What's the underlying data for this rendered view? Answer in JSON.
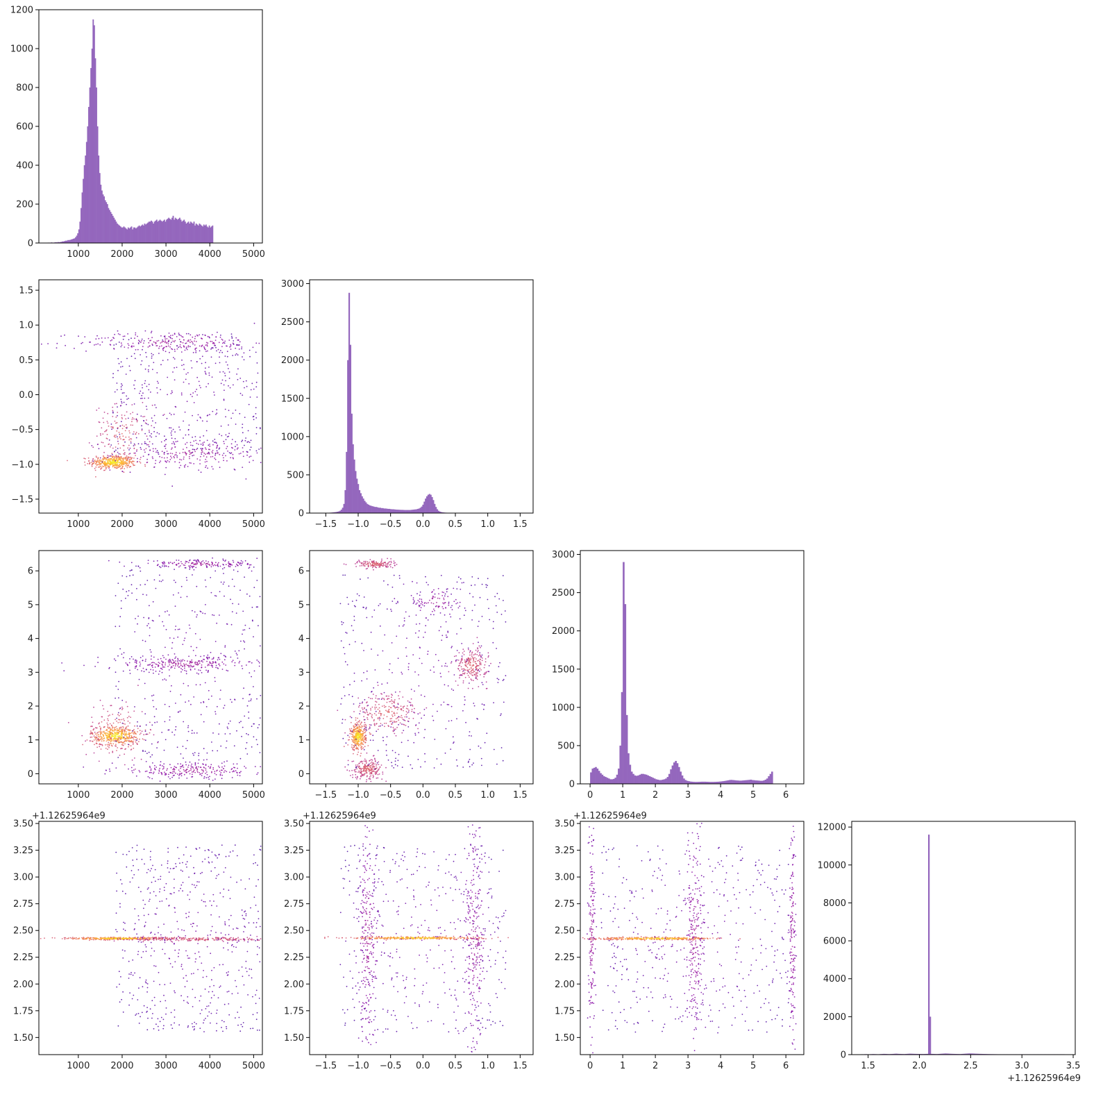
{
  "colors": {
    "hist_fill": "#9467bd",
    "scatter_colormap": "plasma (density-colored points, purple low to yellow high)"
  },
  "chart_data": [
    {
      "id": "hist_0",
      "type": "bar",
      "panel": "row1-col1",
      "xlim": [
        100,
        5200
      ],
      "ylim": [
        0,
        1200
      ],
      "xticks": [
        1000,
        2000,
        3000,
        4000,
        5000
      ],
      "yticks": [
        0,
        200,
        400,
        600,
        800,
        1000,
        1200
      ],
      "bin_edges_start": 300,
      "bin_width": 25,
      "values": [
        2,
        2,
        1,
        3,
        2,
        2,
        3,
        4,
        3,
        5,
        4,
        5,
        6,
        8,
        8,
        10,
        12,
        12,
        15,
        15,
        16,
        18,
        20,
        22,
        24,
        30,
        38,
        50,
        70,
        110,
        180,
        260,
        330,
        400,
        450,
        520,
        600,
        700,
        800,
        900,
        1000,
        1150,
        1120,
        950,
        800,
        600,
        450,
        360,
        300,
        270,
        250,
        240,
        220,
        210,
        200,
        180,
        170,
        160,
        150,
        140,
        130,
        120,
        110,
        100,
        95,
        90,
        85,
        80,
        80,
        85,
        80,
        75,
        70,
        80,
        75,
        80,
        85,
        70,
        80,
        80,
        75,
        80,
        85,
        90,
        85,
        90,
        95,
        90,
        100,
        95,
        100,
        105,
        110,
        110,
        115,
        110,
        100,
        110,
        115,
        120,
        110,
        115,
        120,
        115,
        110,
        115,
        120,
        110,
        120,
        125,
        130,
        125,
        120,
        130,
        140,
        120,
        130,
        125,
        120,
        125,
        130,
        120,
        110,
        115,
        120,
        110,
        100,
        105,
        110,
        100,
        110,
        105,
        100,
        110,
        90,
        100,
        95,
        90,
        100,
        95,
        90,
        85,
        95,
        90,
        95,
        85,
        80,
        90,
        80,
        85,
        90
      ]
    },
    {
      "id": "scatter_1_0",
      "type": "scatter",
      "panel": "row2-col1",
      "xlim": [
        100,
        5200
      ],
      "ylim": [
        -1.7,
        1.65
      ],
      "xticks": [
        1000,
        2000,
        3000,
        4000,
        5000
      ],
      "yticks": [
        -1.5,
        -1.0,
        -0.5,
        0.0,
        0.5,
        1.0,
        1.5
      ],
      "clusters": [
        {
          "cx": 1800,
          "cy": -0.97,
          "sx": 260,
          "sy": 0.05,
          "weight": 5,
          "density": "high"
        },
        {
          "cx": 2000,
          "cy": -0.55,
          "sx": 320,
          "sy": 0.2,
          "weight": 2,
          "density": "mid"
        },
        {
          "cx": 3600,
          "cy": -0.85,
          "sx": 900,
          "sy": 0.12,
          "weight": 3,
          "density": "low"
        },
        {
          "cx": 3200,
          "cy": 0.75,
          "sx": 1100,
          "sy": 0.08,
          "weight": 3,
          "density": "low"
        },
        {
          "cx": 3500,
          "cy": 0.0,
          "sx": 1100,
          "sy": 0.55,
          "weight": 3,
          "density": "sparse"
        }
      ]
    },
    {
      "id": "hist_1",
      "type": "bar",
      "panel": "row2-col2",
      "xlim": [
        -1.75,
        1.7
      ],
      "ylim": [
        0,
        3050
      ],
      "xticks": [
        -1.5,
        -1.0,
        -0.5,
        0.0,
        0.5,
        1.0,
        1.5
      ],
      "yticks": [
        0,
        500,
        1000,
        1500,
        2000,
        2500,
        3000
      ],
      "bin_edges_start": -1.55,
      "bin_width": 0.02,
      "values": [
        2,
        2,
        3,
        3,
        4,
        5,
        6,
        8,
        10,
        12,
        14,
        18,
        22,
        30,
        45,
        70,
        120,
        300,
        800,
        2000,
        2880,
        2200,
        1300,
        900,
        700,
        550,
        450,
        380,
        300,
        260,
        220,
        190,
        160,
        140,
        120,
        110,
        100,
        95,
        90,
        85,
        80,
        80,
        75,
        70,
        70,
        65,
        65,
        60,
        60,
        58,
        55,
        55,
        52,
        50,
        50,
        48,
        46,
        45,
        44,
        43,
        42,
        42,
        41,
        40,
        40,
        40,
        40,
        40,
        42,
        44,
        46,
        48,
        50,
        55,
        60,
        70,
        85,
        110,
        150,
        190,
        220,
        240,
        250,
        240,
        210,
        170,
        120,
        80,
        50,
        30,
        20,
        14,
        10,
        8,
        6,
        5,
        4,
        3,
        3,
        2,
        2,
        2,
        1,
        1,
        1,
        1,
        1,
        1,
        1,
        1,
        1,
        1,
        1,
        1,
        1,
        1,
        1,
        1,
        1,
        1,
        1,
        1,
        1,
        1,
        1,
        1,
        1,
        1,
        1,
        1,
        1,
        1,
        1,
        1,
        1,
        1,
        1,
        1,
        1,
        1,
        1,
        1,
        1,
        1,
        1,
        1,
        1,
        1,
        1,
        1,
        1,
        1,
        1,
        1,
        1
      ]
    },
    {
      "id": "scatter_2_0",
      "type": "scatter",
      "panel": "row3-col1",
      "xlim": [
        100,
        5200
      ],
      "ylim": [
        -0.3,
        6.6
      ],
      "xticks": [
        1000,
        2000,
        3000,
        4000,
        5000
      ],
      "yticks": [
        0,
        1,
        2,
        3,
        4,
        5,
        6
      ],
      "clusters": [
        {
          "cx": 1850,
          "cy": 1.12,
          "sx": 280,
          "sy": 0.15,
          "weight": 5,
          "density": "high"
        },
        {
          "cx": 1900,
          "cy": 1.3,
          "sx": 350,
          "sy": 0.45,
          "weight": 2,
          "density": "mid"
        },
        {
          "cx": 3400,
          "cy": 3.25,
          "sx": 900,
          "sy": 0.12,
          "weight": 3,
          "density": "low"
        },
        {
          "cx": 3600,
          "cy": 0.1,
          "sx": 900,
          "sy": 0.12,
          "weight": 3,
          "density": "low"
        },
        {
          "cx": 3800,
          "cy": 6.2,
          "sx": 700,
          "sy": 0.06,
          "weight": 2,
          "density": "low"
        },
        {
          "cx": 3600,
          "cy": 3.3,
          "sx": 1100,
          "sy": 1.8,
          "weight": 3,
          "density": "sparse"
        }
      ]
    },
    {
      "id": "scatter_2_1",
      "type": "scatter",
      "panel": "row3-col2",
      "xlim": [
        -1.75,
        1.7
      ],
      "ylim": [
        -0.3,
        6.6
      ],
      "xticks": [
        -1.5,
        -1.0,
        -0.5,
        0.0,
        0.5,
        1.0,
        1.5
      ],
      "yticks": [
        0,
        1,
        2,
        3,
        4,
        5,
        6
      ],
      "clusters": [
        {
          "cx": -1.0,
          "cy": 1.1,
          "sx": 0.06,
          "sy": 0.2,
          "weight": 4,
          "density": "high"
        },
        {
          "cx": -0.55,
          "cy": 1.8,
          "sx": 0.25,
          "sy": 0.3,
          "weight": 3,
          "density": "mid"
        },
        {
          "cx": -0.85,
          "cy": 0.15,
          "sx": 0.12,
          "sy": 0.15,
          "weight": 3,
          "density": "mid"
        },
        {
          "cx": 0.75,
          "cy": 3.2,
          "sx": 0.12,
          "sy": 0.25,
          "weight": 3,
          "density": "mid"
        },
        {
          "cx": -0.75,
          "cy": 6.2,
          "sx": 0.15,
          "sy": 0.06,
          "weight": 2,
          "density": "mid"
        },
        {
          "cx": 0.2,
          "cy": 5.1,
          "sx": 0.2,
          "sy": 0.25,
          "weight": 1,
          "density": "low"
        },
        {
          "cx": 0.0,
          "cy": 3.0,
          "sx": 0.8,
          "sy": 1.8,
          "weight": 3,
          "density": "sparse"
        }
      ]
    },
    {
      "id": "hist_2",
      "type": "bar",
      "panel": "row3-col3",
      "xlim": [
        -0.3,
        6.55
      ],
      "ylim": [
        0,
        3050
      ],
      "xticks": [
        0,
        1,
        2,
        3,
        4,
        5,
        6
      ],
      "yticks": [
        0,
        500,
        1000,
        1500,
        2000,
        2500,
        3000
      ],
      "bin_edges_start": 0.0,
      "bin_width": 0.05,
      "values": [
        150,
        200,
        210,
        220,
        200,
        170,
        140,
        120,
        100,
        90,
        80,
        70,
        60,
        60,
        65,
        80,
        120,
        200,
        500,
        1200,
        2900,
        2350,
        900,
        400,
        250,
        160,
        130,
        110,
        105,
        110,
        120,
        130,
        130,
        125,
        120,
        110,
        100,
        90,
        80,
        70,
        60,
        55,
        50,
        50,
        55,
        60,
        70,
        90,
        130,
        190,
        240,
        280,
        300,
        270,
        220,
        160,
        110,
        70,
        50,
        40,
        35,
        30,
        28,
        26,
        25,
        25,
        26,
        27,
        28,
        28,
        28,
        27,
        26,
        25,
        25,
        25,
        26,
        27,
        28,
        30,
        32,
        35,
        38,
        42,
        46,
        50,
        52,
        50,
        48,
        45,
        44,
        42,
        42,
        44,
        46,
        48,
        50,
        52,
        55,
        50,
        48,
        45,
        44,
        42,
        40,
        40,
        45,
        55,
        70,
        100,
        130,
        160
      ]
    },
    {
      "id": "scatter_3_0",
      "type": "scatter",
      "panel": "row4-col1",
      "xlim": [
        100,
        5200
      ],
      "ylim": [
        1.34,
        3.52
      ],
      "xticks": [
        1000,
        2000,
        3000,
        4000,
        5000
      ],
      "yticks": [
        1.5,
        1.75,
        2.0,
        2.25,
        2.5,
        2.75,
        3.0,
        3.25,
        3.5
      ],
      "offset_label": "+1.12625964e9",
      "clusters": [
        {
          "cx": 1900,
          "cy": 2.425,
          "sx": 600,
          "sy": 0.006,
          "weight": 4,
          "density": "high"
        },
        {
          "cx": 3800,
          "cy": 2.42,
          "sx": 900,
          "sy": 0.01,
          "weight": 3,
          "density": "mid"
        },
        {
          "cx": 3600,
          "cy": 2.42,
          "sx": 1100,
          "sy": 0.55,
          "weight": 4,
          "density": "sparse"
        }
      ]
    },
    {
      "id": "scatter_3_1",
      "type": "scatter",
      "panel": "row4-col2",
      "xlim": [
        -1.75,
        1.7
      ],
      "ylim": [
        1.34,
        3.52
      ],
      "xticks": [
        -1.5,
        -1.0,
        -0.5,
        0.0,
        0.5,
        1.0,
        1.5
      ],
      "yticks": [
        1.5,
        1.75,
        2.0,
        2.25,
        2.5,
        2.75,
        3.0,
        3.25,
        3.5
      ],
      "offset_label": "+1.12625964e9",
      "clusters": [
        {
          "cx": -0.1,
          "cy": 2.43,
          "sx": 0.5,
          "sy": 0.006,
          "weight": 4,
          "density": "high"
        },
        {
          "cx": -0.85,
          "cy": 2.42,
          "sx": 0.08,
          "sy": 0.55,
          "weight": 3,
          "density": "low"
        },
        {
          "cx": 0.8,
          "cy": 2.42,
          "sx": 0.08,
          "sy": 0.55,
          "weight": 3,
          "density": "low"
        },
        {
          "cx": 0.0,
          "cy": 2.42,
          "sx": 0.8,
          "sy": 0.55,
          "weight": 3,
          "density": "sparse"
        }
      ]
    },
    {
      "id": "scatter_3_2",
      "type": "scatter",
      "panel": "row4-col3",
      "xlim": [
        -0.3,
        6.55
      ],
      "ylim": [
        1.34,
        3.52
      ],
      "xticks": [
        0,
        1,
        2,
        3,
        4,
        5,
        6
      ],
      "yticks": [
        1.5,
        1.75,
        2.0,
        2.25,
        2.5,
        2.75,
        3.0,
        3.25,
        3.5
      ],
      "offset_label": "+1.12625964e9",
      "clusters": [
        {
          "cx": 2.0,
          "cy": 2.425,
          "sx": 1.0,
          "sy": 0.006,
          "weight": 4,
          "density": "high"
        },
        {
          "cx": 3.2,
          "cy": 2.42,
          "sx": 0.15,
          "sy": 0.55,
          "weight": 3,
          "density": "low"
        },
        {
          "cx": 0.05,
          "cy": 2.42,
          "sx": 0.05,
          "sy": 0.55,
          "weight": 2,
          "density": "low"
        },
        {
          "cx": 6.2,
          "cy": 2.42,
          "sx": 0.05,
          "sy": 0.55,
          "weight": 2,
          "density": "low"
        },
        {
          "cx": 3.2,
          "cy": 2.42,
          "sx": 1.8,
          "sy": 0.55,
          "weight": 3,
          "density": "sparse"
        }
      ]
    },
    {
      "id": "hist_3",
      "type": "bar",
      "panel": "row4-col4",
      "xlim": [
        1.34,
        3.52
      ],
      "ylim": [
        0,
        12300
      ],
      "xticks": [
        1.5,
        2.0,
        2.5,
        3.0,
        3.5
      ],
      "yticks": [
        0,
        2000,
        4000,
        6000,
        8000,
        10000,
        12000
      ],
      "offset_label": "+1.12625964e9",
      "bin_edges_start": 1.42,
      "bin_width": 0.0133,
      "values": [
        15,
        20,
        18,
        22,
        25,
        20,
        18,
        22,
        25,
        30,
        28,
        25,
        22,
        20,
        25,
        30,
        35,
        40,
        38,
        35,
        30,
        28,
        32,
        35,
        40,
        45,
        50,
        45,
        40,
        38,
        35,
        32,
        30,
        35,
        40,
        45,
        50,
        48,
        45,
        42,
        40,
        38,
        36,
        35,
        34,
        33,
        32,
        35,
        38,
        40,
        11600,
        2000,
        40,
        38,
        35,
        32,
        30,
        35,
        40,
        45,
        50,
        55,
        60,
        58,
        55,
        50,
        45,
        42,
        40,
        38,
        36,
        34,
        32,
        30,
        35,
        40,
        45,
        50,
        55,
        60,
        62,
        60,
        58,
        55,
        50,
        48,
        45,
        42,
        40,
        38,
        36,
        34,
        32,
        30,
        28,
        26,
        25,
        24,
        23,
        22,
        21,
        20,
        20,
        20,
        20,
        20,
        20,
        20,
        20,
        20,
        20,
        20,
        20,
        20,
        20,
        20,
        20,
        20,
        20,
        20,
        20,
        20,
        20,
        20,
        20,
        20,
        20,
        20,
        20,
        20,
        20,
        20,
        20,
        20,
        20,
        20,
        20,
        20,
        20,
        20,
        20,
        20,
        20,
        20,
        20,
        20,
        20,
        20,
        20,
        20
      ]
    }
  ]
}
